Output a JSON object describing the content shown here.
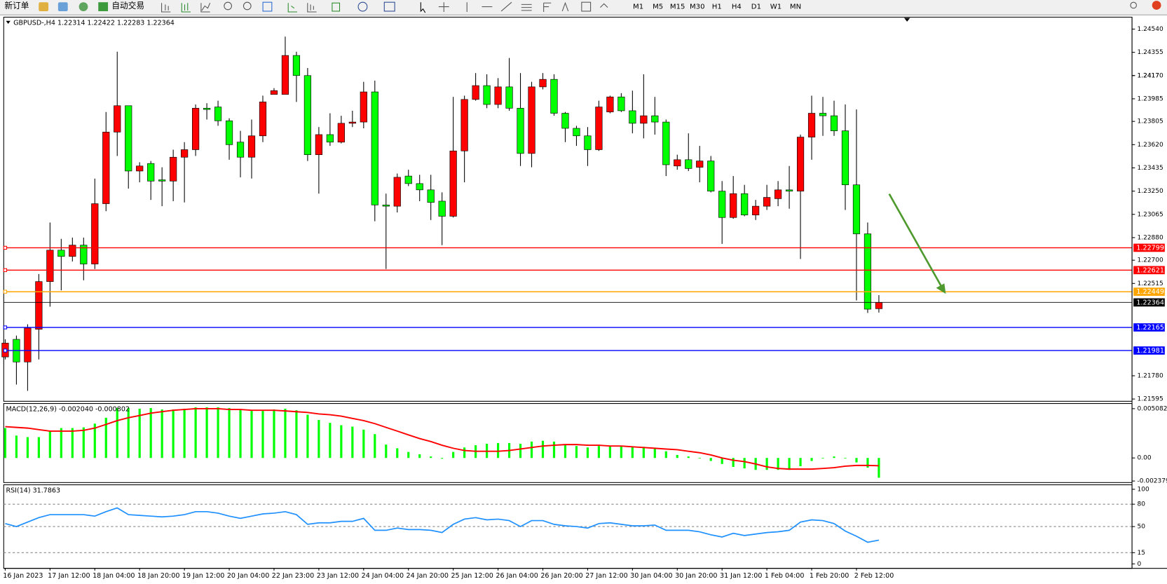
{
  "toolbar": {
    "new_order": "新订单",
    "auto_trading": "自动交易",
    "timeframes": [
      "M1",
      "M5",
      "M15",
      "M30",
      "H1",
      "H4",
      "D1",
      "W1",
      "MN"
    ]
  },
  "chart_data": [
    {
      "type": "candlestick",
      "title": "GBPUSD-,H4  1.22314 1.22422 1.22283 1.22364",
      "categories": [
        "16 Jan 2023",
        null,
        null,
        null,
        "17 Jan 12:00",
        null,
        null,
        null,
        "18 Jan 04:00",
        null,
        null,
        null,
        "18 Jan 20:00",
        null,
        null,
        null,
        "19 Jan 12:00",
        null,
        null,
        null,
        "20 Jan 04:00",
        null,
        null,
        null,
        "22 Jan 23:00",
        null,
        null,
        null,
        "23 Jan 12:00",
        null,
        null,
        null,
        "24 Jan 04:00",
        null,
        null,
        null,
        "24 Jan 20:00",
        null,
        null,
        null,
        "25 Jan 12:00",
        null,
        null,
        null,
        "26 Jan 04:00",
        null,
        null,
        null,
        "26 Jan 20:00",
        null,
        null,
        null,
        "27 Jan 12:00",
        null,
        null,
        null,
        "30 Jan 04:00",
        null,
        null,
        null,
        "30 Jan 20:00",
        null,
        null,
        null,
        "31 Jan 12:00",
        null,
        null,
        null,
        "1 Feb 04:00",
        null,
        null,
        null,
        "1 Feb 20:00",
        null,
        null,
        null,
        "2 Feb 12:00",
        null,
        null
      ],
      "ohlc": [
        [
          1.2193,
          1.2207,
          1.2191,
          1.2204
        ],
        [
          1.2207,
          1.221,
          1.2171,
          1.2189
        ],
        [
          1.2189,
          1.2219,
          1.2166,
          1.2216
        ],
        [
          1.2215,
          1.2259,
          1.2191,
          1.2253
        ],
        [
          1.2253,
          1.23,
          1.2233,
          1.2278
        ],
        [
          1.2278,
          1.2287,
          1.2246,
          1.2273
        ],
        [
          1.2273,
          1.2288,
          1.2269,
          1.2282
        ],
        [
          1.2282,
          1.2288,
          1.2254,
          1.2267
        ],
        [
          1.2267,
          1.2335,
          1.2263,
          1.2315
        ],
        [
          1.2315,
          1.2388,
          1.2309,
          1.2372
        ],
        [
          1.2372,
          1.2436,
          1.2353,
          1.2393
        ],
        [
          1.2393,
          1.2393,
          1.2327,
          1.2341
        ],
        [
          1.2341,
          1.2348,
          1.2332,
          1.2345
        ],
        [
          1.2347,
          1.2349,
          1.2318,
          1.2333
        ],
        [
          1.2334,
          1.2344,
          1.2313,
          1.2333
        ],
        [
          1.2333,
          1.2358,
          1.2317,
          1.2352
        ],
        [
          1.2352,
          1.2364,
          1.2316,
          1.2358
        ],
        [
          1.2358,
          1.2394,
          1.2353,
          1.2391
        ],
        [
          1.2391,
          1.2395,
          1.2382,
          1.239
        ],
        [
          1.2392,
          1.2397,
          1.2377,
          1.2381
        ],
        [
          1.2381,
          1.2383,
          1.235,
          1.2362
        ],
        [
          1.2364,
          1.2373,
          1.2336,
          1.2352
        ],
        [
          1.2352,
          1.2382,
          1.2335,
          1.2369
        ],
        [
          1.2369,
          1.2401,
          1.2364,
          1.2396
        ],
        [
          1.2402,
          1.2407,
          1.2402,
          1.2405
        ],
        [
          1.2402,
          1.2448,
          1.2402,
          1.2433
        ],
        [
          1.2433,
          1.2436,
          1.2396,
          1.2417
        ],
        [
          1.2417,
          1.2423,
          1.2349,
          1.2354
        ],
        [
          1.2354,
          1.2376,
          1.2323,
          1.237
        ],
        [
          1.237,
          1.2387,
          1.2361,
          1.2364
        ],
        [
          1.2364,
          1.2385,
          1.2363,
          1.2379
        ],
        [
          1.2379,
          1.2389,
          1.2376,
          1.238
        ],
        [
          1.238,
          1.2412,
          1.2375,
          1.2404
        ],
        [
          1.2404,
          1.2413,
          1.2301,
          1.2314
        ],
        [
          1.2314,
          1.2323,
          1.2263,
          1.2313
        ],
        [
          1.2313,
          1.2339,
          1.2308,
          1.2336
        ],
        [
          1.2337,
          1.2342,
          1.2329,
          1.2331
        ],
        [
          1.2331,
          1.2338,
          1.2317,
          1.2326
        ],
        [
          1.2326,
          1.2338,
          1.2302,
          1.2316
        ],
        [
          1.2317,
          1.2324,
          1.2282,
          1.2305
        ],
        [
          1.2305,
          1.24,
          1.2304,
          1.2357
        ],
        [
          1.2357,
          1.2401,
          1.2332,
          1.2398
        ],
        [
          1.2398,
          1.2419,
          1.2397,
          1.2409
        ],
        [
          1.2409,
          1.2418,
          1.2391,
          1.2394
        ],
        [
          1.2394,
          1.2415,
          1.2391,
          1.2408
        ],
        [
          1.2408,
          1.2431,
          1.2389,
          1.2391
        ],
        [
          1.2391,
          1.2419,
          1.2345,
          1.2355
        ],
        [
          1.2355,
          1.2412,
          1.2344,
          1.2408
        ],
        [
          1.2408,
          1.2419,
          1.2406,
          1.2414
        ],
        [
          1.2414,
          1.2418,
          1.2385,
          1.2387
        ],
        [
          1.2387,
          1.2388,
          1.2364,
          1.2375
        ],
        [
          1.2375,
          1.2377,
          1.2361,
          1.2369
        ],
        [
          1.2369,
          1.2376,
          1.2345,
          1.2358
        ],
        [
          1.2358,
          1.2397,
          1.2357,
          1.2392
        ],
        [
          1.2388,
          1.2401,
          1.2387,
          1.24
        ],
        [
          1.24,
          1.2403,
          1.2388,
          1.2389
        ],
        [
          1.2389,
          1.2405,
          1.2371,
          1.2379
        ],
        [
          1.2379,
          1.2418,
          1.2367,
          1.2385
        ],
        [
          1.2385,
          1.24,
          1.237,
          1.238
        ],
        [
          1.238,
          1.2382,
          1.2337,
          1.2346
        ],
        [
          1.2345,
          1.2354,
          1.2342,
          1.235
        ],
        [
          1.235,
          1.2371,
          1.2341,
          1.2343
        ],
        [
          1.2344,
          1.2361,
          1.2332,
          1.2349
        ],
        [
          1.2349,
          1.2353,
          1.2324,
          1.2325
        ],
        [
          1.2325,
          1.2333,
          1.2283,
          1.2304
        ],
        [
          1.2304,
          1.2337,
          1.2303,
          1.2323
        ],
        [
          1.2323,
          1.233,
          1.2305,
          1.2306
        ],
        [
          1.2306,
          1.2318,
          1.2302,
          1.2313
        ],
        [
          1.2313,
          1.233,
          1.231,
          1.232
        ],
        [
          1.2319,
          1.2333,
          1.2313,
          1.2326
        ],
        [
          1.2326,
          1.2345,
          1.2311,
          1.2325
        ],
        [
          1.2325,
          1.237,
          1.2271,
          1.2368
        ],
        [
          1.2368,
          1.2401,
          1.235,
          1.2387
        ],
        [
          1.2387,
          1.24,
          1.2369,
          1.2385
        ],
        [
          1.2385,
          1.2397,
          1.2369,
          1.2373
        ],
        [
          1.2373,
          1.2394,
          1.231,
          1.233
        ],
        [
          1.233,
          1.239,
          1.2238,
          1.2291
        ],
        [
          1.2291,
          1.23,
          1.2228,
          1.2231
        ],
        [
          1.22314,
          1.22422,
          1.22283,
          1.22364
        ]
      ],
      "up_color": "#ff0000",
      "down_color": "#00ff00",
      "ylim": [
        1.21577,
        1.24635
      ],
      "yticks": [
        {
          "value": 1.2454,
          "label": "1.24540"
        },
        1.24355,
        1.2417,
        {
          "value": 1.2417,
          "label": "1.24170"
        },
        1.23985,
        {
          "value": 1.23805,
          "label": "1.23805"
        },
        {
          "value": 1.2362,
          "label": "1.23620"
        },
        1.23435,
        {
          "value": 1.2325,
          "label": "1.23250"
        },
        1.23065,
        {
          "value": 1.2288,
          "label": "1.22880"
        },
        {
          "value": 1.227,
          "label": "1.22700"
        },
        1.22515,
        {
          "value": 1.2178,
          "label": "1.21780"
        },
        1.21595
      ],
      "levels": [
        {
          "value": 1.22799,
          "color": "#ff0000"
        },
        {
          "value": 1.22621,
          "color": "#ff0000"
        },
        {
          "value": 1.22449,
          "color": "#ffa500"
        },
        {
          "value": 1.22165,
          "color": "#0000ff"
        },
        {
          "value": 1.21981,
          "color": "#0000ff"
        }
      ]
    },
    {
      "type": "macd",
      "title": "MACD(12,26,9) -0.002040 -0.000802",
      "series": [
        {
          "style": "bar",
          "color": "#00ff00",
          "values": [
            0.00308,
            0.00231,
            0.00215,
            0.00215,
            0.00277,
            0.00308,
            0.00308,
            0.00315,
            0.00354,
            0.00415,
            0.00515,
            0.00515,
            0.00508,
            0.00515,
            0.005,
            0.005,
            0.00508,
            0.00523,
            0.00523,
            0.00523,
            0.00515,
            0.005,
            0.00485,
            0.00485,
            0.005,
            0.00508,
            0.00492,
            0.00446,
            0.00392,
            0.00362,
            0.00338,
            0.00323,
            0.00292,
            0.00246,
            0.00138,
            0.001,
            0.00062,
            0.00038,
            0.00015,
            -8e-05,
            0.00062,
            0.00108,
            0.00131,
            0.00146,
            0.00154,
            0.00154,
            0.00146,
            0.00169,
            0.00177,
            0.00169,
            0.00138,
            0.00123,
            0.00108,
            0.00123,
            0.00123,
            0.00123,
            0.00115,
            0.00115,
            0.001,
            0.00069,
            0.00031,
            0.00015,
            2e-05,
            -0.00031,
            -0.00062,
            -0.00092,
            -0.00108,
            -0.00123,
            -0.00123,
            -0.00123,
            -0.00123,
            -0.00085,
            -0.00031,
            2e-05,
            0.00015,
            2e-05,
            -0.00046,
            -0.001,
            -0.00204
          ]
        },
        {
          "style": "line",
          "color": "#ff0000",
          "values": [
            0.00323,
            0.00315,
            0.00308,
            0.00292,
            0.00277,
            0.00277,
            0.00277,
            0.00285,
            0.00308,
            0.00346,
            0.00385,
            0.00415,
            0.00438,
            0.00462,
            0.00477,
            0.00492,
            0.005,
            0.00508,
            0.00508,
            0.00508,
            0.005,
            0.005,
            0.00492,
            0.00492,
            0.00492,
            0.00485,
            0.00477,
            0.00469,
            0.00454,
            0.00446,
            0.00431,
            0.00408,
            0.00385,
            0.00354,
            0.00315,
            0.00277,
            0.00238,
            0.002,
            0.00169,
            0.00131,
            0.001,
            0.00077,
            0.00069,
            0.00069,
            0.00069,
            0.00077,
            0.00092,
            0.00108,
            0.00123,
            0.00131,
            0.00138,
            0.00138,
            0.00131,
            0.00131,
            0.00123,
            0.00123,
            0.00115,
            0.00108,
            0.001,
            0.00092,
            0.00085,
            0.00069,
            0.00054,
            0.00031,
            0,
            -0.00023,
            -0.00038,
            -0.00062,
            -0.00092,
            -0.00108,
            -0.00115,
            -0.00115,
            -0.00115,
            -0.00108,
            -0.001,
            -0.00085,
            -0.00077,
            -0.00077,
            -0.000802
          ]
        }
      ],
      "ylim": [
        -0.002538,
        0.005615
      ],
      "yticks": [
        0.005082,
        {
          "value": 0,
          "label": "0.00"
        },
        -0.002379
      ]
    },
    {
      "type": "rsi",
      "title": "RSI(14) 31.7863",
      "color": "#1e90ff",
      "values": [
        54,
        50,
        56,
        62,
        66,
        66,
        66,
        66,
        64,
        70,
        75,
        66,
        65,
        64,
        63,
        64,
        66,
        70,
        70,
        68,
        64,
        61,
        64,
        67,
        68,
        70,
        66,
        53,
        55,
        55,
        57,
        57,
        61,
        45,
        45,
        48,
        46,
        46,
        45,
        42,
        53,
        60,
        62,
        59,
        60,
        58,
        50,
        58,
        58,
        53,
        51,
        50,
        48,
        54,
        55,
        53,
        51,
        51,
        52,
        45,
        45,
        45,
        43,
        39,
        36,
        41,
        38,
        40,
        42,
        43,
        45,
        56,
        59,
        58,
        54,
        44,
        37,
        29,
        31.7863
      ],
      "ylim": [
        -6,
        106
      ],
      "yticks": [
        100,
        80,
        50,
        15,
        0
      ],
      "levels": [
        80,
        50,
        15
      ]
    }
  ]
}
